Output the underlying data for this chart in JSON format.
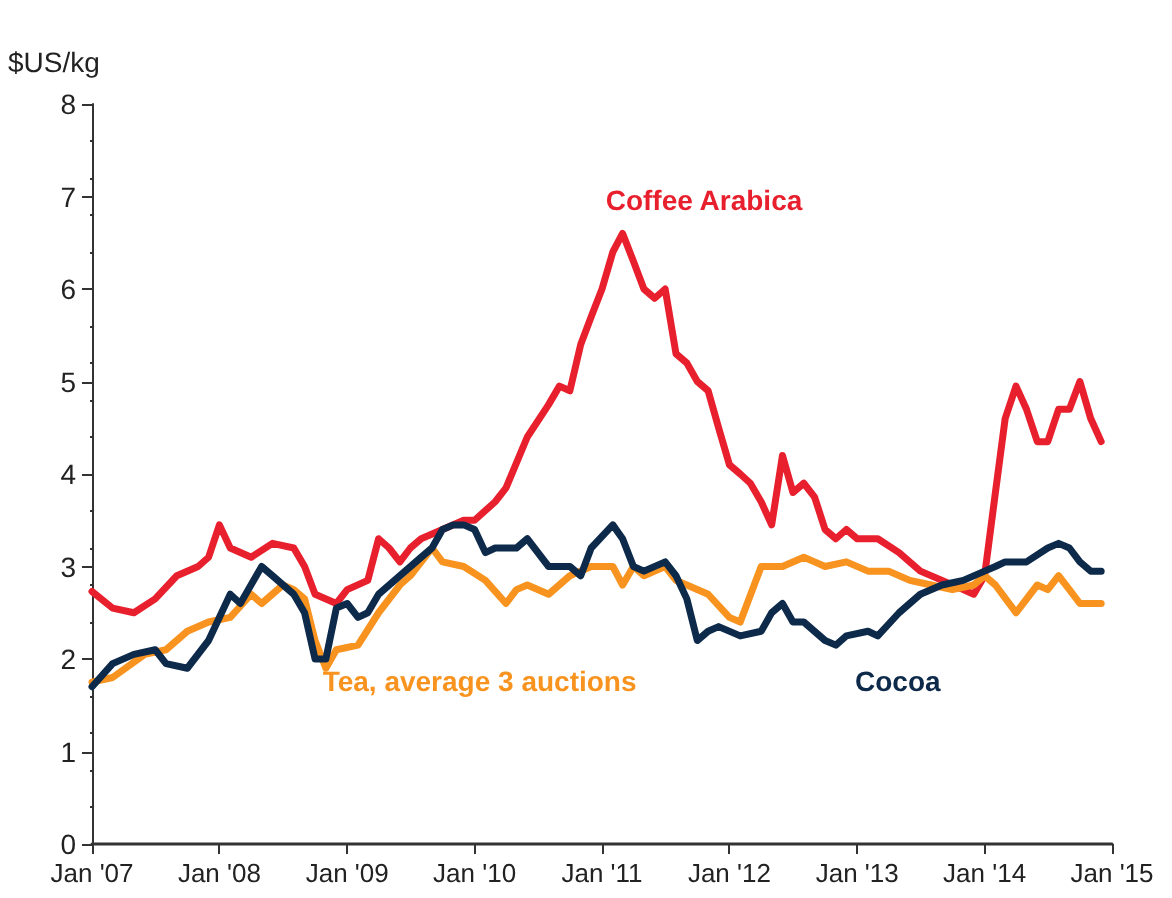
{
  "chart_data": {
    "type": "line",
    "ylabel": "$US/kg",
    "xlim": [
      "2007-01",
      "2015-01"
    ],
    "xticks": [
      {
        "value": "2007-01",
        "label": "Jan '07"
      },
      {
        "value": "2008-01",
        "label": "Jan '08"
      },
      {
        "value": "2009-01",
        "label": "Jan '09"
      },
      {
        "value": "2010-01",
        "label": "Jan '10"
      },
      {
        "value": "2011-01",
        "label": "Jan '11"
      },
      {
        "value": "2012-01",
        "label": "Jan '12"
      },
      {
        "value": "2013-01",
        "label": "Jan '13"
      },
      {
        "value": "2014-01",
        "label": "Jan '14"
      },
      {
        "value": "2015-01",
        "label": "Jan '15"
      }
    ],
    "ylim": [
      0,
      8
    ],
    "yticks": [
      0,
      1,
      2,
      3,
      4,
      5,
      6,
      7,
      8
    ],
    "grid": false,
    "marker": "none",
    "line_style": "solid",
    "series": [
      {
        "name": "Coffee Arabica",
        "color": "#e8202e",
        "x": [
          "2007-01",
          "2007-03",
          "2007-05",
          "2007-07",
          "2007-09",
          "2007-11",
          "2007-12",
          "2008-01",
          "2008-02",
          "2008-04",
          "2008-06",
          "2008-08",
          "2008-09",
          "2008-10",
          "2008-12",
          "2009-01",
          "2009-03",
          "2009-04",
          "2009-05",
          "2009-06",
          "2009-07",
          "2009-08",
          "2009-10",
          "2009-12",
          "2010-01",
          "2010-03",
          "2010-04",
          "2010-06",
          "2010-08",
          "2010-09",
          "2010-10",
          "2010-11",
          "2010-12",
          "2011-01",
          "2011-02",
          "2011-03",
          "2011-04",
          "2011-05",
          "2011-06",
          "2011-07",
          "2011-08",
          "2011-09",
          "2011-10",
          "2011-11",
          "2011-12",
          "2012-01",
          "2012-02",
          "2012-03",
          "2012-04",
          "2012-05",
          "2012-06",
          "2012-07",
          "2012-08",
          "2012-09",
          "2012-10",
          "2012-11",
          "2012-12",
          "2013-01",
          "2013-03",
          "2013-05",
          "2013-07",
          "2013-09",
          "2013-11",
          "2013-12",
          "2014-01",
          "2014-02",
          "2014-03",
          "2014-04",
          "2014-05",
          "2014-06",
          "2014-07",
          "2014-08",
          "2014-09",
          "2014-10",
          "2014-11",
          "2014-12"
        ],
        "values": [
          2.73,
          2.55,
          2.5,
          2.65,
          2.9,
          3.0,
          3.1,
          3.45,
          3.2,
          3.1,
          3.25,
          3.2,
          3.0,
          2.7,
          2.6,
          2.75,
          2.85,
          3.3,
          3.2,
          3.05,
          3.2,
          3.3,
          3.4,
          3.5,
          3.5,
          3.7,
          3.85,
          4.4,
          4.75,
          4.95,
          4.9,
          5.4,
          5.7,
          6.0,
          6.4,
          6.6,
          6.3,
          6.0,
          5.9,
          6.0,
          5.3,
          5.2,
          5.0,
          4.9,
          4.5,
          4.1,
          4.0,
          3.9,
          3.7,
          3.45,
          4.2,
          3.8,
          3.9,
          3.75,
          3.4,
          3.3,
          3.4,
          3.3,
          3.3,
          3.15,
          2.95,
          2.85,
          2.75,
          2.7,
          2.9,
          3.8,
          4.6,
          4.95,
          4.7,
          4.35,
          4.35,
          4.7,
          4.7,
          5.0,
          4.6,
          4.35
        ]
      },
      {
        "name": "Tea, average 3 auctions",
        "color": "#f7931e",
        "x": [
          "2007-01",
          "2007-03",
          "2007-06",
          "2007-08",
          "2007-10",
          "2007-12",
          "2008-02",
          "2008-04",
          "2008-05",
          "2008-07",
          "2008-08",
          "2008-09",
          "2008-10",
          "2008-11",
          "2008-12",
          "2009-02",
          "2009-04",
          "2009-06",
          "2009-07",
          "2009-09",
          "2009-10",
          "2009-12",
          "2010-02",
          "2010-04",
          "2010-05",
          "2010-06",
          "2010-08",
          "2010-10",
          "2010-12",
          "2011-02",
          "2011-03",
          "2011-04",
          "2011-05",
          "2011-07",
          "2011-08",
          "2011-09",
          "2011-11",
          "2012-01",
          "2012-02",
          "2012-04",
          "2012-06",
          "2012-08",
          "2012-09",
          "2012-10",
          "2012-12",
          "2013-02",
          "2013-04",
          "2013-06",
          "2013-08",
          "2013-10",
          "2013-12",
          "2014-01",
          "2014-02",
          "2014-04",
          "2014-06",
          "2014-07",
          "2014-08",
          "2014-09",
          "2014-10",
          "2014-12"
        ],
        "values": [
          1.75,
          1.8,
          2.05,
          2.1,
          2.3,
          2.4,
          2.45,
          2.7,
          2.6,
          2.8,
          2.75,
          2.65,
          2.2,
          1.9,
          2.1,
          2.15,
          2.5,
          2.8,
          2.9,
          3.2,
          3.05,
          3.0,
          2.85,
          2.6,
          2.75,
          2.8,
          2.7,
          2.9,
          3.0,
          3.0,
          2.8,
          3.0,
          2.9,
          3.0,
          2.85,
          2.8,
          2.7,
          2.45,
          2.4,
          3.0,
          3.0,
          3.1,
          3.05,
          3.0,
          3.05,
          2.95,
          2.95,
          2.85,
          2.8,
          2.75,
          2.8,
          2.9,
          2.8,
          2.5,
          2.8,
          2.75,
          2.9,
          2.75,
          2.6,
          2.6
        ]
      },
      {
        "name": "Cocoa",
        "color": "#0d2a4a",
        "x": [
          "2007-01",
          "2007-03",
          "2007-05",
          "2007-07",
          "2007-08",
          "2007-10",
          "2007-12",
          "2008-02",
          "2008-03",
          "2008-05",
          "2008-06",
          "2008-08",
          "2008-09",
          "2008-10",
          "2008-11",
          "2008-12",
          "2009-01",
          "2009-02",
          "2009-03",
          "2009-04",
          "2009-06",
          "2009-08",
          "2009-09",
          "2009-10",
          "2009-11",
          "2009-12",
          "2010-01",
          "2010-02",
          "2010-03",
          "2010-05",
          "2010-06",
          "2010-08",
          "2010-10",
          "2010-11",
          "2010-12",
          "2011-02",
          "2011-03",
          "2011-04",
          "2011-05",
          "2011-07",
          "2011-08",
          "2011-09",
          "2011-10",
          "2011-11",
          "2011-12",
          "2012-02",
          "2012-04",
          "2012-05",
          "2012-06",
          "2012-07",
          "2012-08",
          "2012-10",
          "2012-11",
          "2012-12",
          "2013-02",
          "2013-03",
          "2013-05",
          "2013-07",
          "2013-09",
          "2013-11",
          "2014-01",
          "2014-02",
          "2014-03",
          "2014-05",
          "2014-07",
          "2014-08",
          "2014-09",
          "2014-10",
          "2014-11",
          "2014-12"
        ],
        "values": [
          1.7,
          1.95,
          2.05,
          2.1,
          1.95,
          1.9,
          2.2,
          2.7,
          2.6,
          3.0,
          2.9,
          2.7,
          2.5,
          2.0,
          2.0,
          2.55,
          2.6,
          2.45,
          2.5,
          2.7,
          2.9,
          3.1,
          3.2,
          3.4,
          3.45,
          3.45,
          3.4,
          3.15,
          3.2,
          3.2,
          3.3,
          3.0,
          3.0,
          2.9,
          3.2,
          3.45,
          3.3,
          3.0,
          2.95,
          3.05,
          2.9,
          2.65,
          2.2,
          2.3,
          2.35,
          2.25,
          2.3,
          2.5,
          2.6,
          2.4,
          2.4,
          2.2,
          2.15,
          2.25,
          2.3,
          2.25,
          2.5,
          2.7,
          2.8,
          2.85,
          2.95,
          3.0,
          3.05,
          3.05,
          3.2,
          3.25,
          3.2,
          3.05,
          2.95,
          2.95
        ]
      }
    ]
  }
}
